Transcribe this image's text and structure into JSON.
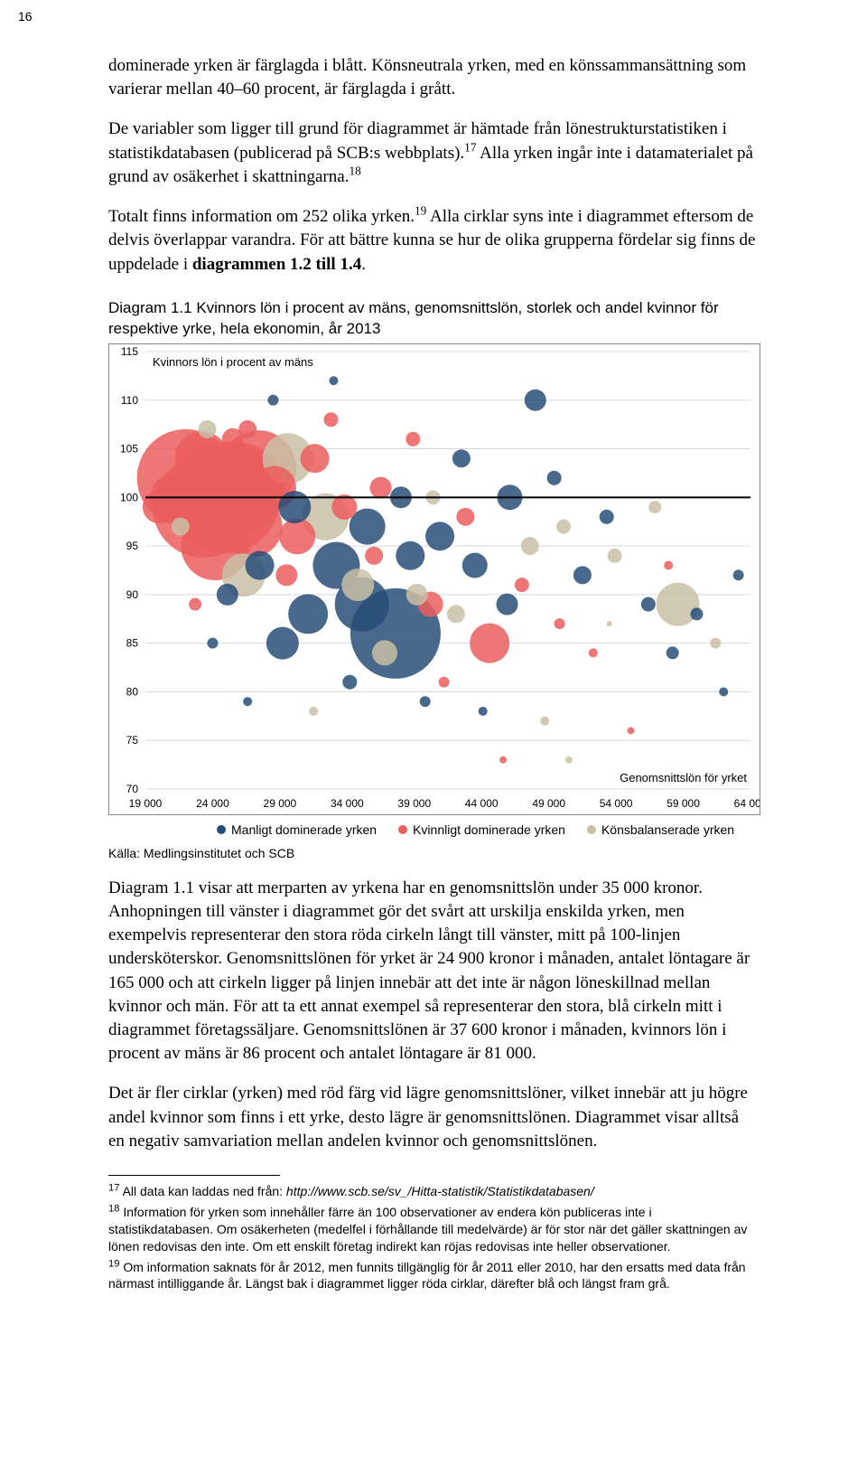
{
  "page_number": "16",
  "para1_html": "dominerade yrken är färglagda i blått. Könsneutrala yrken, med en könssammansättning som varierar mellan 40–60 procent, är färglagda i grått.",
  "para2_html": "De variabler som ligger till grund för diagrammet är hämtade från lönestrukturstatistiken i statistikdatabasen (publicerad på SCB:s webbplats).<sup>17</sup> Alla yrken ingår inte i datamaterialet på grund av osäkerhet i skattningarna.<sup>18</sup>",
  "para3_html": "Totalt finns information om 252 olika yrken.<sup>19</sup> Alla cirklar syns inte i diagrammet eftersom de delvis överlappar varandra. För att bättre kunna se hur de olika grupperna fördelar sig finns de uppdelade i <b>diagrammen 1.2 till 1.4</b>.",
  "chart_title": "Diagram 1.1  Kvinnors lön i procent av mäns, genomsnittslön, storlek och andel kvinnor för respektive yrke, hela ekonomin, år 2013",
  "chart": {
    "type": "bubble",
    "x_label": "Genomsnittslön för yrket",
    "y_label_inside": "Kvinnors lön i procent av mäns",
    "xlim": [
      19000,
      64000
    ],
    "ylim": [
      70,
      115
    ],
    "xticks": [
      19000,
      24000,
      29000,
      34000,
      39000,
      44000,
      49000,
      54000,
      59000,
      64000
    ],
    "xtick_labels": [
      "19 000",
      "24 000",
      "29 000",
      "34 000",
      "39 000",
      "44 000",
      "49 000",
      "54 000",
      "59 000",
      "64 000"
    ],
    "yticks": [
      70,
      75,
      80,
      85,
      90,
      95,
      100,
      105,
      110,
      115
    ],
    "grid_color": "#d9d9d9",
    "border_color": "#808080",
    "background": "#ffffff",
    "refline_y": 100,
    "refline_color": "#000000",
    "tick_font_size": 12,
    "axis_label_font_size": 13,
    "colors": {
      "blue": "#284d78",
      "red": "#eb5e5e",
      "grey": "#c9bfa6"
    },
    "opacity": 0.85,
    "bubbles": [
      {
        "x": 24900,
        "y": 100,
        "r": 62,
        "c": "red"
      },
      {
        "x": 23300,
        "y": 99,
        "r": 56,
        "c": "red"
      },
      {
        "x": 22000,
        "y": 102,
        "r": 54,
        "c": "red"
      },
      {
        "x": 25900,
        "y": 101,
        "r": 50,
        "c": "red"
      },
      {
        "x": 24200,
        "y": 95,
        "r": 38,
        "c": "red"
      },
      {
        "x": 27400,
        "y": 103,
        "r": 42,
        "c": "red"
      },
      {
        "x": 26900,
        "y": 97,
        "r": 34,
        "c": "red"
      },
      {
        "x": 23200,
        "y": 104,
        "r": 30,
        "c": "red"
      },
      {
        "x": 21100,
        "y": 100,
        "r": 26,
        "c": "red"
      },
      {
        "x": 20000,
        "y": 99,
        "r": 18,
        "c": "red"
      },
      {
        "x": 28600,
        "y": 101,
        "r": 24,
        "c": "red"
      },
      {
        "x": 30300,
        "y": 96,
        "r": 20,
        "c": "red"
      },
      {
        "x": 31600,
        "y": 104,
        "r": 16,
        "c": "red"
      },
      {
        "x": 25500,
        "y": 106,
        "r": 12,
        "c": "red"
      },
      {
        "x": 22700,
        "y": 89,
        "r": 7,
        "c": "red"
      },
      {
        "x": 26600,
        "y": 107,
        "r": 10,
        "c": "red"
      },
      {
        "x": 29500,
        "y": 92,
        "r": 12,
        "c": "red"
      },
      {
        "x": 33800,
        "y": 99,
        "r": 14,
        "c": "red"
      },
      {
        "x": 36500,
        "y": 101,
        "r": 12,
        "c": "red"
      },
      {
        "x": 36000,
        "y": 94,
        "r": 10,
        "c": "red"
      },
      {
        "x": 40200,
        "y": 89,
        "r": 14,
        "c": "red"
      },
      {
        "x": 42800,
        "y": 98,
        "r": 10,
        "c": "red"
      },
      {
        "x": 44600,
        "y": 85,
        "r": 22,
        "c": "red"
      },
      {
        "x": 47000,
        "y": 91,
        "r": 8,
        "c": "red"
      },
      {
        "x": 49800,
        "y": 87,
        "r": 6,
        "c": "red"
      },
      {
        "x": 52300,
        "y": 84,
        "r": 5,
        "c": "red"
      },
      {
        "x": 55100,
        "y": 76,
        "r": 4,
        "c": "red"
      },
      {
        "x": 45600,
        "y": 73,
        "r": 4,
        "c": "red"
      },
      {
        "x": 57900,
        "y": 93,
        "r": 5,
        "c": "red"
      },
      {
        "x": 32800,
        "y": 108,
        "r": 8,
        "c": "red"
      },
      {
        "x": 38900,
        "y": 106,
        "r": 8,
        "c": "red"
      },
      {
        "x": 41200,
        "y": 81,
        "r": 6,
        "c": "red"
      },
      {
        "x": 37600,
        "y": 86,
        "r": 50,
        "c": "blue"
      },
      {
        "x": 35100,
        "y": 89,
        "r": 30,
        "c": "blue"
      },
      {
        "x": 33200,
        "y": 93,
        "r": 26,
        "c": "blue"
      },
      {
        "x": 31100,
        "y": 88,
        "r": 22,
        "c": "blue"
      },
      {
        "x": 29200,
        "y": 85,
        "r": 18,
        "c": "blue"
      },
      {
        "x": 27500,
        "y": 93,
        "r": 16,
        "c": "blue"
      },
      {
        "x": 25100,
        "y": 90,
        "r": 12,
        "c": "blue"
      },
      {
        "x": 30100,
        "y": 99,
        "r": 18,
        "c": "blue"
      },
      {
        "x": 35500,
        "y": 97,
        "r": 20,
        "c": "blue"
      },
      {
        "x": 38700,
        "y": 94,
        "r": 16,
        "c": "blue"
      },
      {
        "x": 40900,
        "y": 96,
        "r": 16,
        "c": "blue"
      },
      {
        "x": 43500,
        "y": 93,
        "r": 14,
        "c": "blue"
      },
      {
        "x": 45900,
        "y": 89,
        "r": 12,
        "c": "blue"
      },
      {
        "x": 46100,
        "y": 100,
        "r": 14,
        "c": "blue"
      },
      {
        "x": 48000,
        "y": 110,
        "r": 12,
        "c": "blue"
      },
      {
        "x": 42500,
        "y": 104,
        "r": 10,
        "c": "blue"
      },
      {
        "x": 38000,
        "y": 100,
        "r": 12,
        "c": "blue"
      },
      {
        "x": 51500,
        "y": 92,
        "r": 10,
        "c": "blue"
      },
      {
        "x": 53300,
        "y": 98,
        "r": 8,
        "c": "blue"
      },
      {
        "x": 56400,
        "y": 89,
        "r": 8,
        "c": "blue"
      },
      {
        "x": 58200,
        "y": 84,
        "r": 7,
        "c": "blue"
      },
      {
        "x": 60000,
        "y": 88,
        "r": 7,
        "c": "blue"
      },
      {
        "x": 63100,
        "y": 92,
        "r": 6,
        "c": "blue"
      },
      {
        "x": 62000,
        "y": 80,
        "r": 5,
        "c": "blue"
      },
      {
        "x": 28500,
        "y": 110,
        "r": 6,
        "c": "blue"
      },
      {
        "x": 33000,
        "y": 112,
        "r": 5,
        "c": "blue"
      },
      {
        "x": 34200,
        "y": 81,
        "r": 8,
        "c": "blue"
      },
      {
        "x": 39800,
        "y": 79,
        "r": 6,
        "c": "blue"
      },
      {
        "x": 24000,
        "y": 85,
        "r": 6,
        "c": "blue"
      },
      {
        "x": 44100,
        "y": 78,
        "r": 5,
        "c": "blue"
      },
      {
        "x": 26600,
        "y": 79,
        "r": 5,
        "c": "blue"
      },
      {
        "x": 49400,
        "y": 102,
        "r": 8,
        "c": "blue"
      },
      {
        "x": 29600,
        "y": 104,
        "r": 28,
        "c": "grey"
      },
      {
        "x": 32400,
        "y": 98,
        "r": 26,
        "c": "grey"
      },
      {
        "x": 26300,
        "y": 92,
        "r": 24,
        "c": "grey"
      },
      {
        "x": 34800,
        "y": 91,
        "r": 18,
        "c": "grey"
      },
      {
        "x": 36800,
        "y": 84,
        "r": 14,
        "c": "grey"
      },
      {
        "x": 39200,
        "y": 90,
        "r": 12,
        "c": "grey"
      },
      {
        "x": 42100,
        "y": 88,
        "r": 10,
        "c": "grey"
      },
      {
        "x": 47600,
        "y": 95,
        "r": 10,
        "c": "grey"
      },
      {
        "x": 50100,
        "y": 97,
        "r": 8,
        "c": "grey"
      },
      {
        "x": 53900,
        "y": 94,
        "r": 8,
        "c": "grey"
      },
      {
        "x": 56900,
        "y": 99,
        "r": 7,
        "c": "grey"
      },
      {
        "x": 58600,
        "y": 89,
        "r": 24,
        "c": "grey"
      },
      {
        "x": 61400,
        "y": 85,
        "r": 6,
        "c": "grey"
      },
      {
        "x": 23600,
        "y": 107,
        "r": 10,
        "c": "grey"
      },
      {
        "x": 21600,
        "y": 97,
        "r": 10,
        "c": "grey"
      },
      {
        "x": 31500,
        "y": 78,
        "r": 5,
        "c": "grey"
      },
      {
        "x": 48700,
        "y": 77,
        "r": 5,
        "c": "grey"
      },
      {
        "x": 50500,
        "y": 73,
        "r": 4,
        "c": "grey"
      },
      {
        "x": 53500,
        "y": 87,
        "r": 3,
        "c": "grey"
      },
      {
        "x": 40400,
        "y": 100,
        "r": 8,
        "c": "grey"
      }
    ]
  },
  "legend": {
    "items": [
      {
        "color": "#284d78",
        "label": "Manligt dominerade yrken"
      },
      {
        "color": "#eb5e5e",
        "label": "Kvinnligt dominerade yrken"
      },
      {
        "color": "#c9bfa6",
        "label": "Könsbalanserade yrken"
      }
    ]
  },
  "source": "Källa: Medlingsinstitutet och SCB",
  "para4_html": "Diagram 1.1 visar att merparten av yrkena har en genomsnittslön under 35 000 kronor. Anhopningen till vänster i diagrammet gör det svårt att urskilja enskilda yrken, men exempelvis representerar den stora röda cirkeln långt till vänster, mitt på 100-linjen undersköterskor. Genomsnittslönen för yrket är 24 900 kronor i månaden, antalet löntagare är 165 000 och att cirkeln ligger på linjen innebär att det inte är någon löneskillnad mellan kvinnor och män. För att ta ett annat exempel så representerar den stora, blå cirkeln mitt i diagrammet företagssäljare. Genomsnittslönen är 37 600 kronor i månaden, kvinnors lön i procent av mäns är 86 procent och antalet löntagare är 81 000.",
  "para5_html": "Det är fler cirklar (yrken) med röd färg vid lägre genomsnittslöner, vilket innebär att ju högre andel kvinnor som finns i ett yrke, desto lägre är genomsnittslönen. Diagrammet visar alltså en negativ samvariation mellan andelen kvinnor och genomsnittslönen.",
  "footnotes": [
    {
      "n": "17",
      "html": "All data kan laddas ned från: <span class='ital'>http://www.scb.se/sv_/Hitta-statistik/Statistikdatabasen/</span>"
    },
    {
      "n": "18",
      "html": "Information för yrken som innehåller färre än 100 observationer av endera kön publiceras inte i statistikdatabasen. Om osäkerheten (medelfel i förhållande till medelvärde) är för stor när det gäller skattningen av lönen redovisas den inte. Om ett enskilt företag indirekt kan röjas redovisas inte heller observationer."
    },
    {
      "n": "19",
      "html": "Om information saknats för år 2012, men funnits tillgänglig för år 2011 eller 2010, har den ersatts med data från närmast intilliggande år. Längst bak i diagrammet ligger röda cirklar, därefter blå och längst fram grå."
    }
  ]
}
